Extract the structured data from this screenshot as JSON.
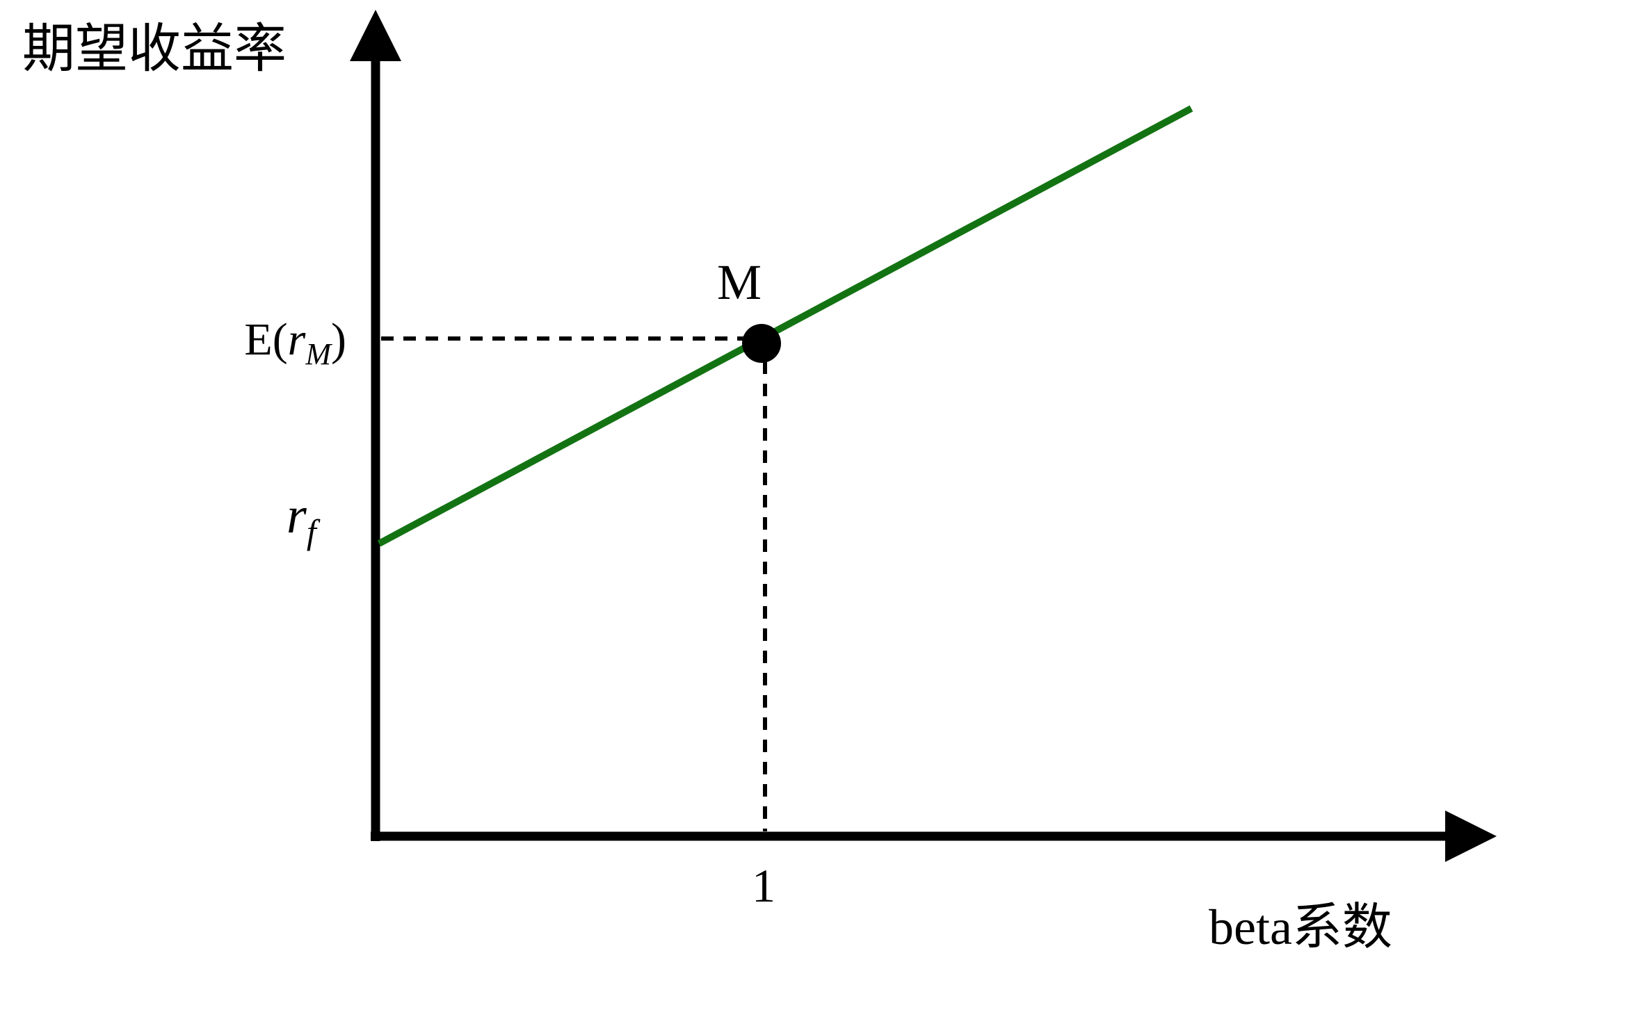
{
  "y_axis": {
    "label": "期望收益率"
  },
  "x_axis": {
    "label": "beta系数",
    "tick_label": "1"
  },
  "point": {
    "label": "M"
  },
  "levels": {
    "market_prefix": "E(",
    "market_var": "r",
    "market_sub": "M",
    "market_suffix": ")",
    "riskfree_var": "r",
    "riskfree_sub": "f"
  },
  "colors": {
    "line": "#137313",
    "axes": "#000000"
  }
}
